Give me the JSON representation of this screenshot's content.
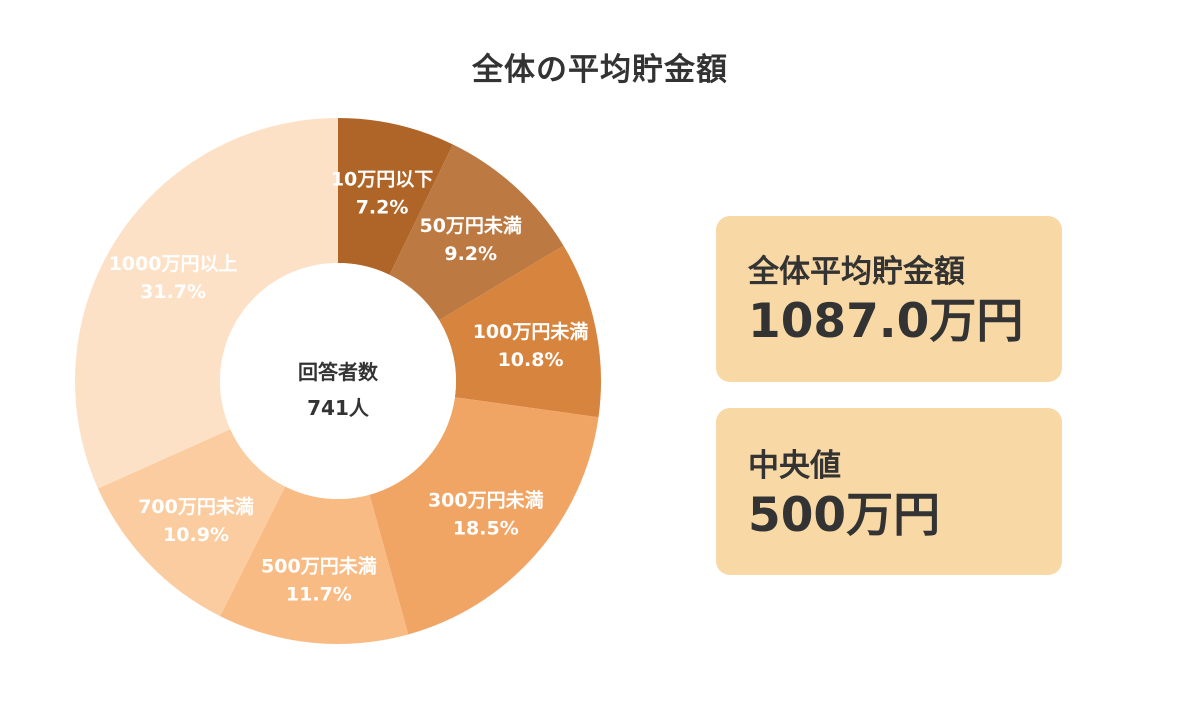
{
  "chart_data": {
    "type": "pie",
    "variant": "donut",
    "title": "全体の平均貯金額",
    "center_label": "回答者数",
    "center_value": "741人",
    "slices": [
      {
        "label": "10万円以下",
        "value_text": "7.2%",
        "value": 7.2,
        "color": "#b06528",
        "text_color": "#ffffff"
      },
      {
        "label": "50万円未満",
        "value_text": "9.2%",
        "value": 9.2,
        "color": "#bd7942",
        "text_color": "#ffffff"
      },
      {
        "label": "100万円未満",
        "value_text": "10.8%",
        "value": 10.8,
        "color": "#d7843e",
        "text_color": "#ffffff"
      },
      {
        "label": "300万円未満",
        "value_text": "18.5%",
        "value": 18.5,
        "color": "#f1a565",
        "text_color": "#ffffff"
      },
      {
        "label": "500万円未満",
        "value_text": "11.7%",
        "value": 11.7,
        "color": "#f8bb84",
        "text_color": "#ffffff"
      },
      {
        "label": "700万円未満",
        "value_text": "10.9%",
        "value": 10.9,
        "color": "#fbcc9f",
        "text_color": "#ffffff"
      },
      {
        "label": "1000万円以上",
        "value_text": "31.7%",
        "value": 31.7,
        "color": "#fde1c6",
        "text_color": "#ffffff"
      }
    ]
  },
  "cards": [
    {
      "label": "全体平均貯金額",
      "value": "1087.0万円"
    },
    {
      "label": "中央値",
      "value": "500万円"
    }
  ]
}
